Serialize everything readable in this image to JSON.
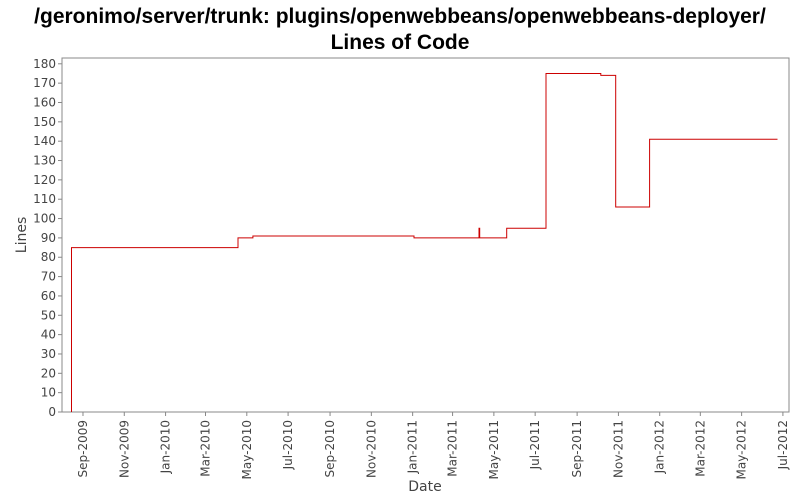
{
  "chart_data": {
    "type": "line",
    "step": true,
    "title_line1": "/geronimo/server/trunk: plugins/openwebbeans/openwebbeans-deployer/",
    "title_line2": "Lines of Code",
    "xlabel": "Date",
    "ylabel": "Lines",
    "ylim": [
      0,
      183
    ],
    "yticks": [
      0,
      10,
      20,
      30,
      40,
      50,
      60,
      70,
      80,
      90,
      100,
      110,
      120,
      130,
      140,
      150,
      160,
      170,
      180
    ],
    "xlim": [
      "2009-08-01",
      "2012-07-10"
    ],
    "xticks": [
      "2009-09-01",
      "2009-11-01",
      "2010-01-01",
      "2010-03-01",
      "2010-05-01",
      "2010-07-01",
      "2010-09-01",
      "2010-11-01",
      "2011-01-01",
      "2011-03-01",
      "2011-05-01",
      "2011-07-01",
      "2011-09-01",
      "2011-11-01",
      "2012-01-01",
      "2012-03-01",
      "2012-05-01",
      "2012-07-01"
    ],
    "xtick_labels": [
      "Sep-2009",
      "Nov-2009",
      "Jan-2010",
      "Mar-2010",
      "May-2010",
      "Jul-2010",
      "Sep-2010",
      "Nov-2010",
      "Jan-2011",
      "Mar-2011",
      "May-2011",
      "Jul-2011",
      "Sep-2011",
      "Nov-2011",
      "Jan-2012",
      "Mar-2012",
      "May-2012",
      "Jul-2012"
    ],
    "grid": false,
    "legend": "none",
    "line_color": "#cc0000",
    "series": [
      {
        "points": [
          {
            "x": "2009-08-15",
            "y": 0
          },
          {
            "x": "2009-08-15",
            "y": 85
          },
          {
            "x": "2010-04-18",
            "y": 90
          },
          {
            "x": "2010-05-10",
            "y": 91
          },
          {
            "x": "2011-01-03",
            "y": 90
          },
          {
            "x": "2011-04-09",
            "y": 95
          },
          {
            "x": "2011-04-10",
            "y": 90
          },
          {
            "x": "2011-05-20",
            "y": 95
          },
          {
            "x": "2011-07-17",
            "y": 175
          },
          {
            "x": "2011-10-06",
            "y": 174
          },
          {
            "x": "2011-10-28",
            "y": 106
          },
          {
            "x": "2011-12-17",
            "y": 141
          },
          {
            "x": "2012-06-23",
            "y": 141
          }
        ]
      }
    ]
  }
}
